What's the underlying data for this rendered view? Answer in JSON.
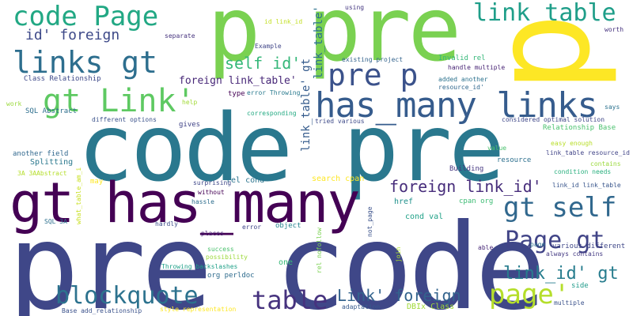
{
  "words": [
    {
      "text": "pre code",
      "color": "#3f4788"
    },
    {
      "text": "code pre",
      "color": "#2a788e"
    },
    {
      "text": "p pre",
      "color": "#7ad151"
    },
    {
      "text": "p",
      "color": "#fde725"
    },
    {
      "text": "gt has_many",
      "color": "#440154"
    },
    {
      "text": "has_many links",
      "color": "#365c8d"
    },
    {
      "text": "code Page",
      "color": "#22a884"
    },
    {
      "text": "links gt",
      "color": "#2d6e8e"
    },
    {
      "text": "gt Link'",
      "color": "#5ec962"
    },
    {
      "text": "pre p",
      "color": "#3b528b"
    },
    {
      "text": "link table",
      "color": "#1f9e89"
    },
    {
      "text": "gt self",
      "color": "#31688e"
    },
    {
      "text": "Page gt",
      "color": "#414487"
    },
    {
      "text": "blockquote",
      "color": "#2c728e"
    },
    {
      "text": "table",
      "color": "#46327e"
    },
    {
      "text": "page'",
      "color": "#b5de2b"
    },
    {
      "text": "id' foreign",
      "color": "#3e4a89"
    },
    {
      "text": "self id'",
      "color": "#35b779"
    },
    {
      "text": "foreign link_id'",
      "color": "#472d7b"
    },
    {
      "text": "Link' foreign",
      "color": "#33638d"
    },
    {
      "text": "link_id' gt",
      "color": "#287d8e"
    },
    {
      "text": "foreign link_table'",
      "color": "#482878"
    },
    {
      "text": "link_table' gt",
      "color": "#365c8d"
    },
    {
      "text": "Class Relationship",
      "color": "#3e4989"
    },
    {
      "text": "SQL Abstract",
      "color": "#2e6f8e"
    },
    {
      "text": "different options",
      "color": "#3b528b"
    },
    {
      "text": "another field",
      "color": "#31688e"
    },
    {
      "text": "Splitting",
      "color": "#2a788e"
    },
    {
      "text": "3A 3AAbstract",
      "color": "#b5de2b"
    },
    {
      "text": "Relationship Base",
      "color": "#4ac16d"
    },
    {
      "text": "link_table resource_id",
      "color": "#414487"
    },
    {
      "text": "resource",
      "color": "#2d708e"
    },
    {
      "text": "considered optimal solution",
      "color": "#3f4788"
    },
    {
      "text": "Invalid rel",
      "color": "#35b779"
    },
    {
      "text": "handle multiple",
      "color": "#482475"
    },
    {
      "text": "added another",
      "color": "#2c728e"
    },
    {
      "text": "resource_id'",
      "color": "#31688e"
    },
    {
      "text": "existing project",
      "color": "#33638d"
    },
    {
      "text": "id link_id",
      "color": "#c2df23"
    },
    {
      "text": "using",
      "color": "#453781"
    },
    {
      "text": "separate",
      "color": "#46337e"
    },
    {
      "text": "Example",
      "color": "#404688"
    },
    {
      "text": "error Throwing",
      "color": "#297a8e"
    },
    {
      "text": "type",
      "color": "#440154"
    },
    {
      "text": "help",
      "color": "#a2da37"
    },
    {
      "text": "work",
      "color": "#9bd93c"
    },
    {
      "text": "gives",
      "color": "#414487"
    },
    {
      "text": "corresponding",
      "color": "#24aa83"
    },
    {
      "text": "tried various",
      "color": "#3e4a89"
    },
    {
      "text": "says",
      "color": "#2c728e"
    },
    {
      "text": "worth",
      "color": "#46327e"
    },
    {
      "text": "easy enough",
      "color": "#b8de29"
    },
    {
      "text": "contains",
      "color": "#9bd93c"
    },
    {
      "text": "condition needs",
      "color": "#2ab07f"
    },
    {
      "text": "value",
      "color": "#4ac16d"
    },
    {
      "text": "Building",
      "color": "#453781"
    },
    {
      "text": "link_id link_table",
      "color": "#39568c"
    },
    {
      "text": "various different",
      "color": "#3f4788"
    },
    {
      "text": "always contains",
      "color": "#443a83"
    },
    {
      "text": "page",
      "color": "#2d708e"
    },
    {
      "text": "able",
      "color": "#482878"
    },
    {
      "text": "side",
      "color": "#1f9a8a"
    },
    {
      "text": "multiple",
      "color": "#3b528b"
    },
    {
      "text": "DBIx Class",
      "color": "#a0da39"
    },
    {
      "text": "adaptation",
      "color": "#375b8d"
    },
    {
      "text": "join",
      "color": "#ade028"
    },
    {
      "text": "search cpan",
      "color": "#fde725"
    },
    {
      "text": "cpan org",
      "color": "#3dbc74"
    },
    {
      "text": "cond val",
      "color": "#1fa187"
    },
    {
      "text": "href",
      "color": "#21918c"
    },
    {
      "text": "rel cond",
      "color": "#2b748e"
    },
    {
      "text": "surprising",
      "color": "#3f4889"
    },
    {
      "text": "without",
      "color": "#440154"
    },
    {
      "text": "hassle",
      "color": "#2e6e8e"
    },
    {
      "text": "hardly",
      "color": "#3d4e8a"
    },
    {
      "text": "places",
      "color": "#482374"
    },
    {
      "text": "error",
      "color": "#404688"
    },
    {
      "text": "object",
      "color": "#25848e"
    },
    {
      "text": "success",
      "color": "#4ac16d"
    },
    {
      "text": "possibility",
      "color": "#9dd93b"
    },
    {
      "text": "one",
      "color": "#37b878"
    },
    {
      "text": "Throwing backslashes",
      "color": "#1fa088"
    },
    {
      "text": "org perldoc",
      "color": "#2f6c8e"
    },
    {
      "text": "style representation",
      "color": "#fde725"
    },
    {
      "text": "Base add_relationship",
      "color": "#3b528b"
    },
    {
      "text": "SQL 3A",
      "color": "#2d708e"
    },
    {
      "text": "may",
      "color": "#fde725"
    },
    {
      "text": "what_table_am_i",
      "color": "#c8e020"
    },
    {
      "text": "rel nofollow",
      "color": "#7ad151"
    },
    {
      "text": "not_page",
      "color": "#3b528b"
    }
  ]
}
